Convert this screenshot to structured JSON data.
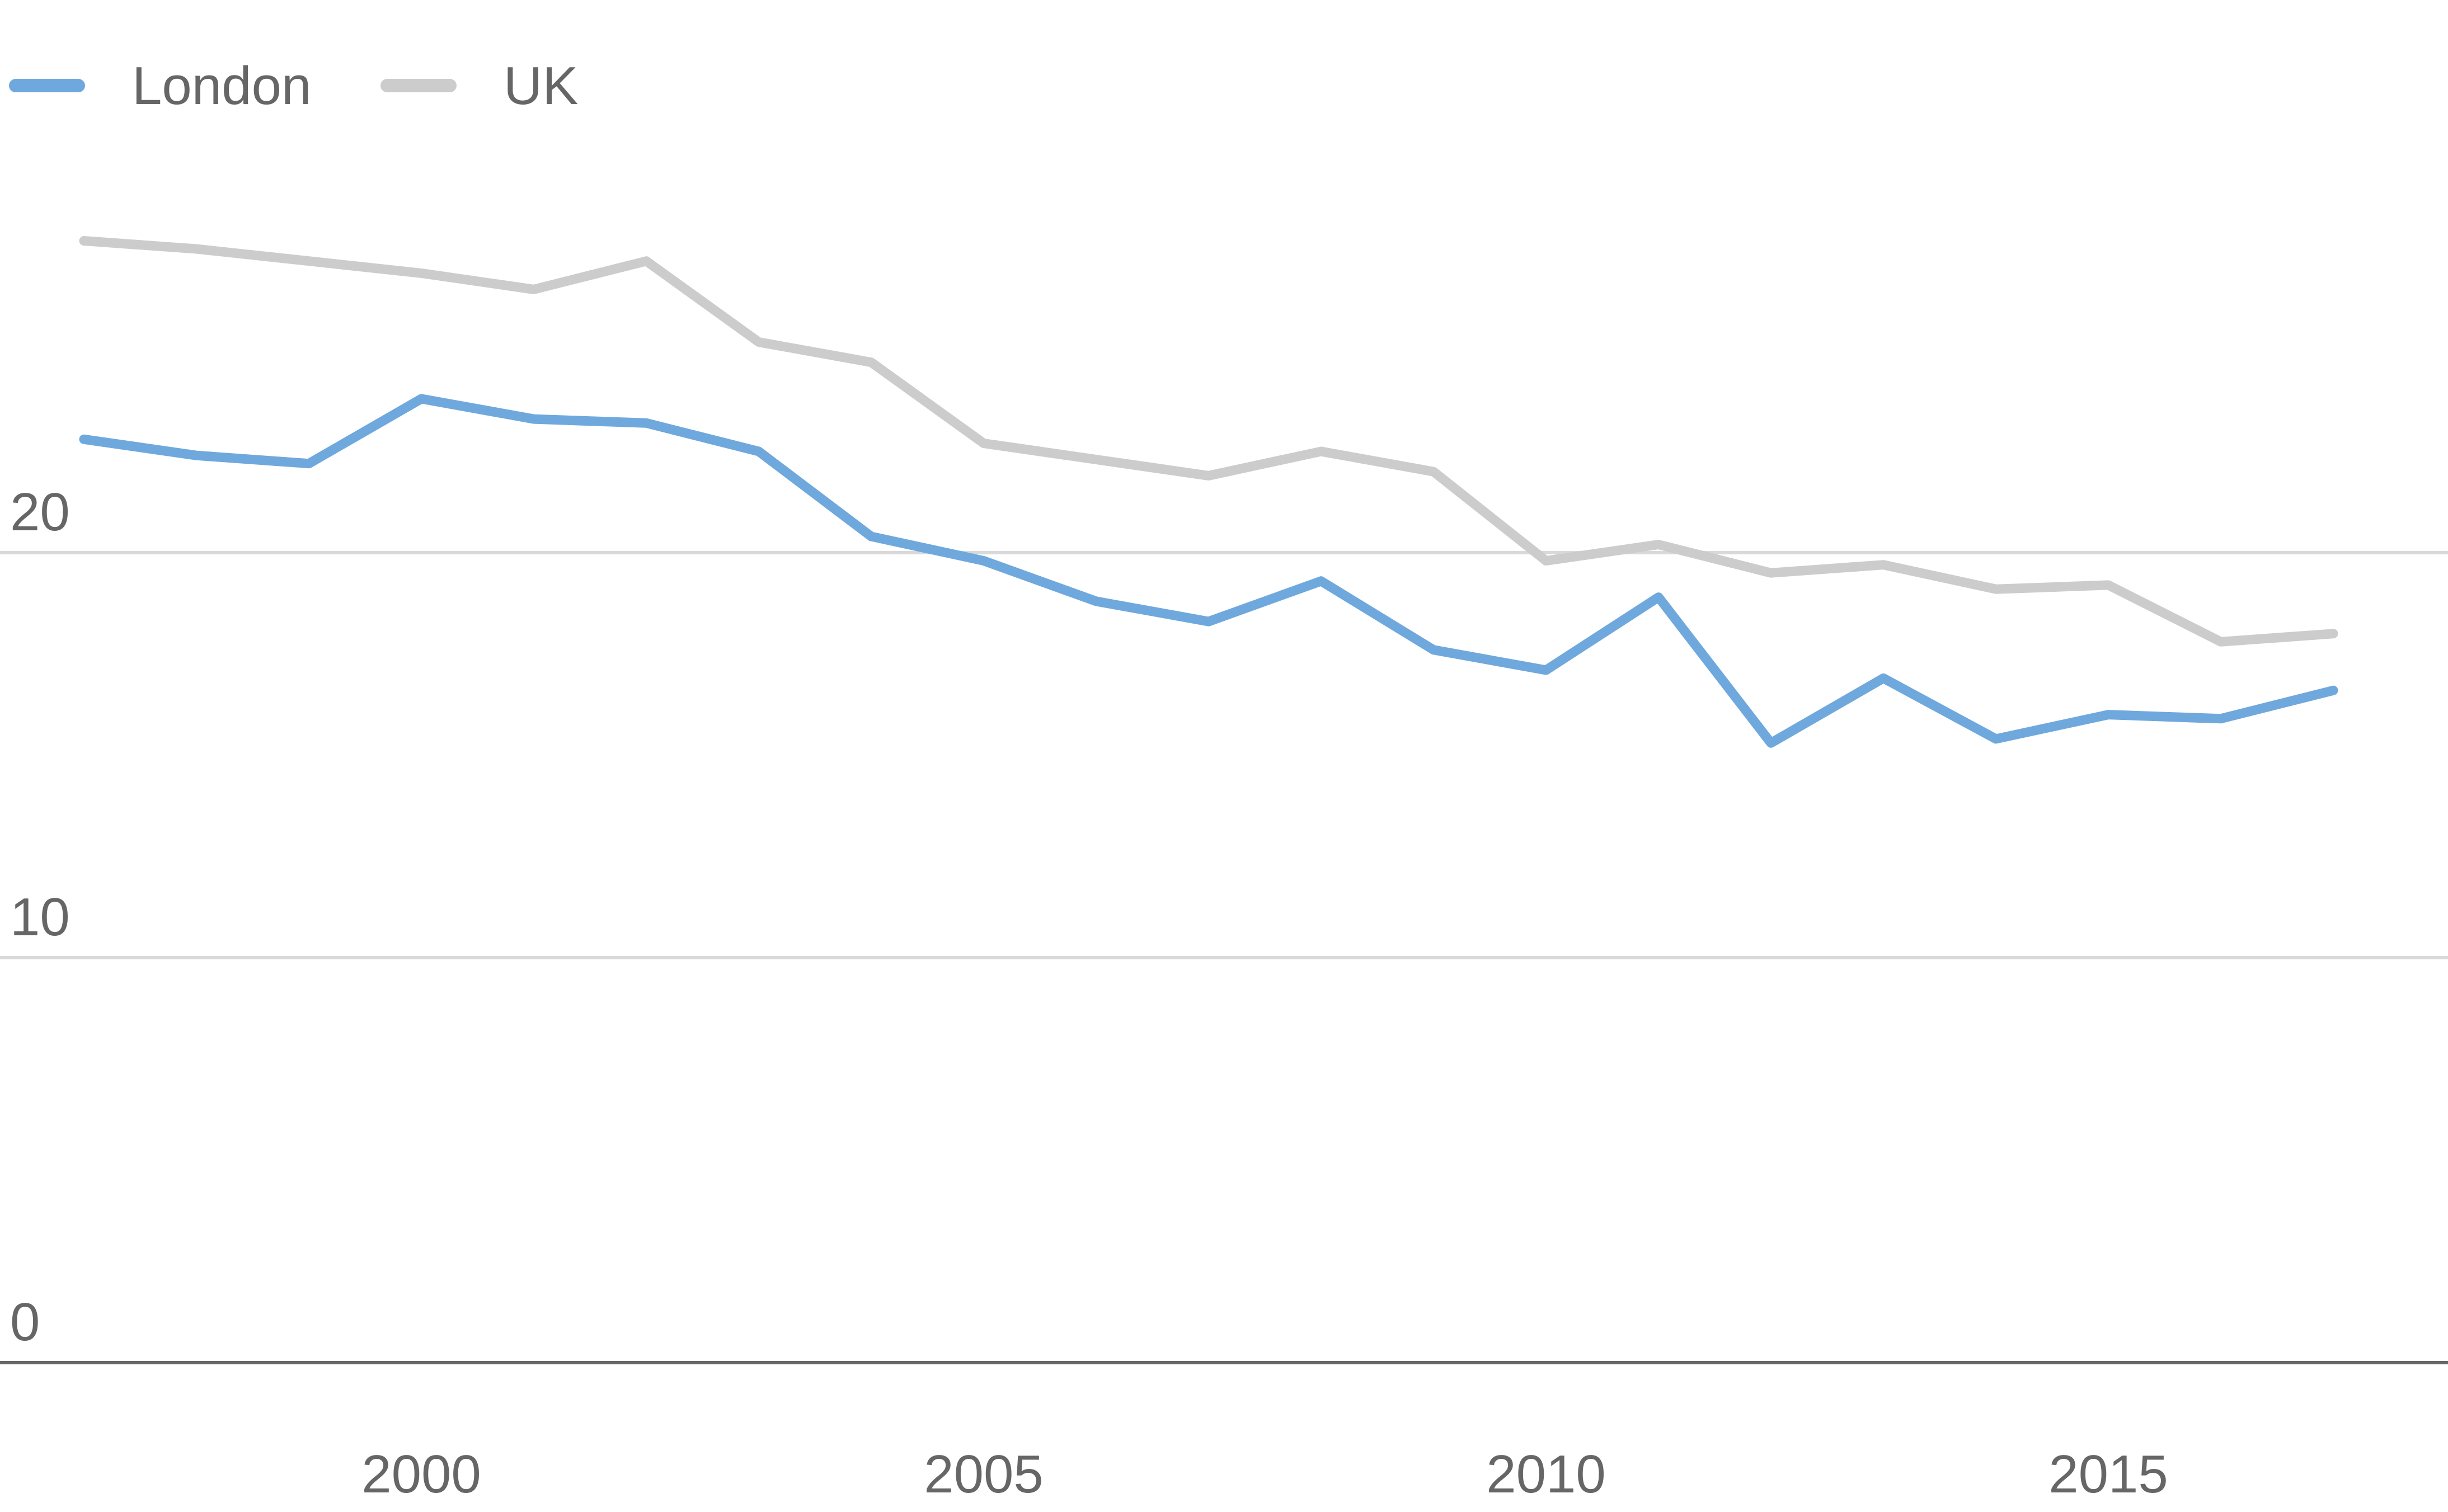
{
  "chart_data": {
    "type": "line",
    "x": [
      1997,
      1998,
      1999,
      2000,
      2001,
      2002,
      2003,
      2004,
      2005,
      2006,
      2007,
      2008,
      2009,
      2010,
      2011,
      2012,
      2013,
      2014,
      2015,
      2016,
      2017
    ],
    "series": [
      {
        "name": "London",
        "color": "#6fa8dc",
        "values": [
          22.8,
          22.4,
          22.2,
          23.8,
          23.3,
          23.2,
          22.5,
          20.4,
          19.8,
          18.8,
          18.3,
          19.3,
          17.6,
          17.1,
          18.9,
          15.3,
          16.9,
          15.4,
          16.0,
          15.9,
          16.6
        ]
      },
      {
        "name": "UK",
        "color": "#cccccc",
        "values": [
          27.7,
          27.5,
          27.2,
          26.9,
          26.5,
          27.2,
          25.2,
          24.7,
          22.7,
          22.3,
          21.9,
          22.5,
          22.0,
          19.8,
          20.2,
          19.5,
          19.7,
          19.1,
          19.2,
          17.8,
          18.0
        ]
      }
    ],
    "y_ticks": [
      "0",
      "10",
      "20"
    ],
    "x_ticks": [
      "2000",
      "2005",
      "2010",
      "2015"
    ],
    "ylim": [
      0,
      30
    ],
    "xlim": [
      1996.7,
      2017.5
    ],
    "grid": true,
    "legend_position": "top-left"
  }
}
